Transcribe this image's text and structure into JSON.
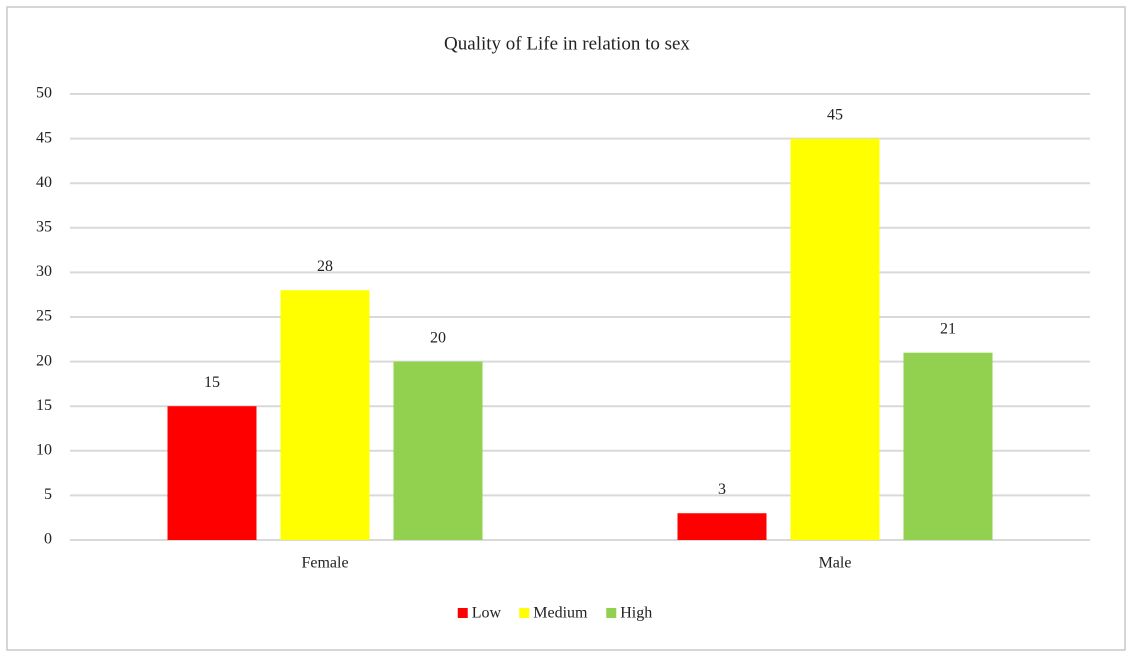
{
  "chart_data": {
    "type": "bar",
    "title": "Quality of Life in relation to sex",
    "categories": [
      "Female",
      "Male"
    ],
    "series": [
      {
        "name": "Low",
        "color": "#ff0000",
        "values": [
          15,
          3
        ]
      },
      {
        "name": "Medium",
        "color": "#ffff00",
        "values": [
          28,
          45
        ]
      },
      {
        "name": "High",
        "color": "#92d050",
        "values": [
          20,
          21
        ]
      }
    ],
    "ylim": [
      0,
      50
    ],
    "yticks": [
      0,
      5,
      10,
      15,
      20,
      25,
      30,
      35,
      40,
      45,
      50
    ],
    "grid": true,
    "legend": "bottom"
  }
}
